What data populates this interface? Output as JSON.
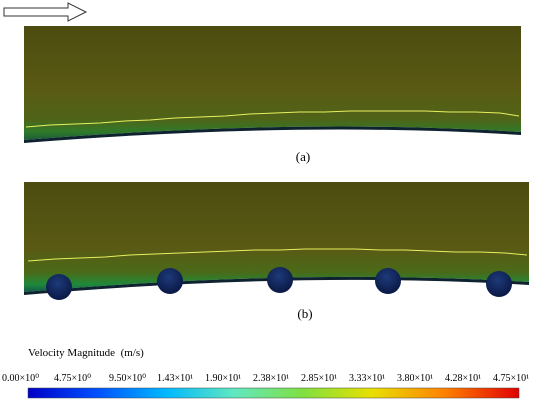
{
  "panels": [
    {
      "caption": "(a)"
    },
    {
      "caption": "(b)"
    }
  ],
  "flow_direction_icon": "right-arrow-icon",
  "legend": {
    "title": "Velocity Magnitude  (m/s)",
    "ticks": [
      "0.00×10⁰",
      "4.75×10⁰",
      "9.50×10⁰",
      "1.43×10¹",
      "1.90×10¹",
      "2.38×10¹",
      "2.85×10¹",
      "3.33×10¹",
      "3.80×10¹",
      "4.28×10¹",
      "4.75×10¹"
    ],
    "colormap": [
      "#0000c8",
      "#0090ff",
      "#30d0ff",
      "#70e070",
      "#a0e020",
      "#ffd000",
      "#ff6000",
      "#e00000"
    ]
  },
  "colors": {
    "field": "#5a5a14",
    "shear_line": "#e8f060",
    "boundary_layer": "#1a7a3a",
    "wall": "#1a3a50",
    "cylinder": "#0c1a4a"
  }
}
